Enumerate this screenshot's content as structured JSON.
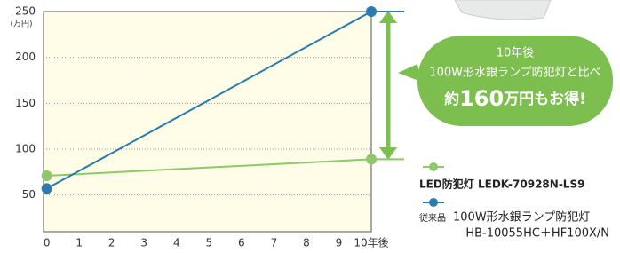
{
  "chart_data": {
    "type": "line",
    "x": [
      0,
      10
    ],
    "xlim": [
      -0.1,
      10
    ],
    "xticks": [
      0,
      1,
      2,
      3,
      4,
      5,
      6,
      7,
      8,
      9,
      {
        "value": 10,
        "label": "10年後"
      }
    ],
    "ylim": [
      10,
      250
    ],
    "yticks": [
      50,
      100,
      150,
      200,
      250
    ],
    "y_unit": "(万円)",
    "grid": true,
    "series": [
      {
        "name": "LED防犯灯 LEDK-70928N-LS9",
        "color": "#8dc86a",
        "values": [
          71,
          89
        ]
      },
      {
        "name": "100W形水銀ランプ防犯灯",
        "tag": "従来品",
        "model": "HB-10055HC＋HF100X/N",
        "color": "#2b7bad",
        "values": [
          57,
          250
        ]
      }
    ],
    "callout": {
      "line1": "10年後",
      "line2": "100W形水銀ランプ防犯灯と比べ",
      "pre": "約",
      "amount": "160",
      "post": "万円もお得!"
    }
  }
}
